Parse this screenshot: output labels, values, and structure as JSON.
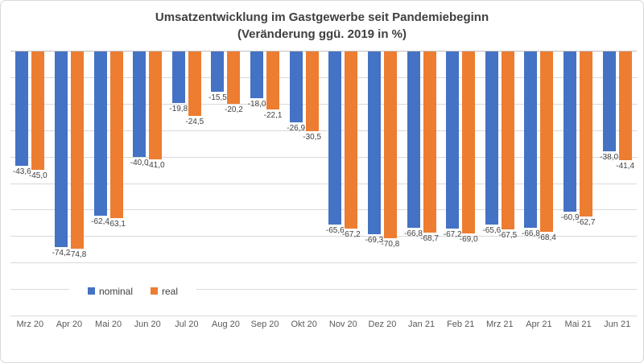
{
  "title": {
    "line1": "Umsatzentwicklung im Gastgewerbe seit Pandemiebeginn",
    "line2": "(Veränderung ggü. 2019 in %)"
  },
  "legend": {
    "items": [
      {
        "label": "nominal",
        "color": "#4472C4"
      },
      {
        "label": "real",
        "color": "#ED7D31"
      }
    ]
  },
  "colors": {
    "nominal": "#4472C4",
    "real": "#ED7D31",
    "gridline": "#d9d9d9",
    "axis_line": "#bfbfbf",
    "title_text": "#404040",
    "data_label_text": "#404040",
    "axis_label_text": "#595959"
  },
  "chart_data": {
    "type": "bar",
    "title": "Umsatzentwicklung im Gastgewerbe seit Pandemiebeginn (Veränderung ggü. 2019 in %)",
    "xlabel": "",
    "ylabel": "",
    "ylim": [
      -100,
      0
    ],
    "grid": "horizontal, every 10, labels hidden",
    "legend_position": "inside plot, lower left of center",
    "categories": [
      "Mrz 20",
      "Apr 20",
      "Mai 20",
      "Jun 20",
      "Jul 20",
      "Aug 20",
      "Sep 20",
      "Okt 20",
      "Nov 20",
      "Dez 20",
      "Jan 21",
      "Feb 21",
      "Mrz 21",
      "Apr 21",
      "Mai 21",
      "Jun 21"
    ],
    "series": [
      {
        "name": "nominal",
        "color": "#4472C4",
        "values": [
          -43.6,
          -74.2,
          -62.4,
          -40.0,
          -19.8,
          -15.5,
          -18.0,
          -26.9,
          -65.6,
          -69.3,
          -66.8,
          -67.2,
          -65.6,
          -66.8,
          -60.9,
          -38.0
        ],
        "labels": [
          "-43,6",
          "-74,2",
          "-62,4",
          "-40,0",
          "-19,8",
          "-15,5",
          "-18,0",
          "-26,9",
          "-65,6",
          "-69,3",
          "-66,8",
          "-67,2",
          "-65,6",
          "-66,8",
          "-60,9",
          "-38,0"
        ]
      },
      {
        "name": "real",
        "color": "#ED7D31",
        "values": [
          -45.0,
          -74.8,
          -63.1,
          -41.0,
          -24.5,
          -20.2,
          -22.1,
          -30.5,
          -67.2,
          -70.8,
          -68.7,
          -69.0,
          -67.5,
          -68.4,
          -62.7,
          -41.4
        ],
        "labels": [
          "-45,0",
          "-74,8",
          "-63,1",
          "-41,0",
          "-24,5",
          "-20,2",
          "-22,1",
          "-30,5",
          "-67,2",
          "-70,8",
          "-68,7",
          "-69,0",
          "-67,5",
          "-68,4",
          "-62,7",
          "-41,4"
        ]
      }
    ]
  }
}
